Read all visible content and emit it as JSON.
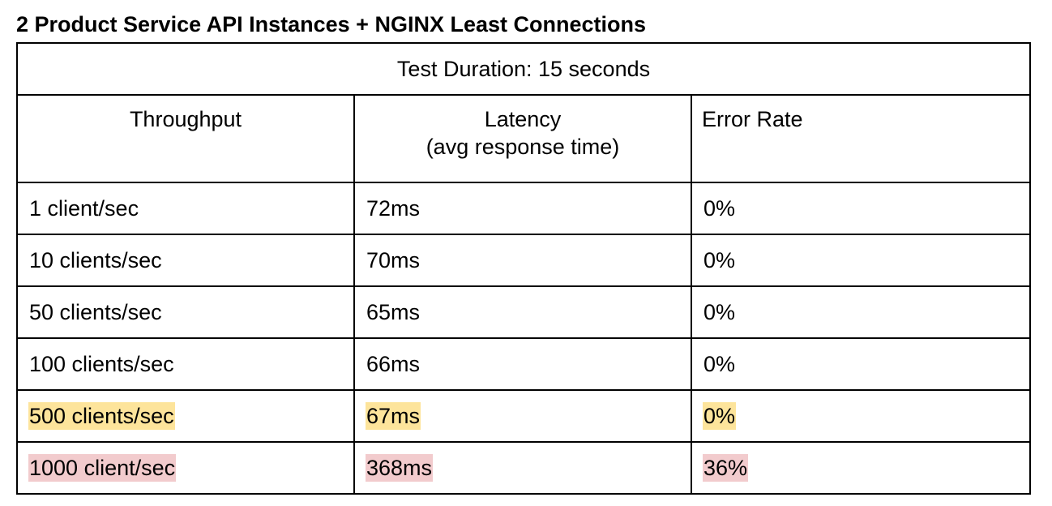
{
  "title": "2 Product Service API Instances + NGINX Least Connections",
  "table": {
    "duration": "Test Duration: 15 seconds",
    "headers": {
      "throughput": "Throughput",
      "latency_line1": "Latency",
      "latency_line2": "(avg response time)",
      "error_rate": "Error Rate"
    },
    "rows": [
      {
        "throughput": "1 client/sec",
        "latency": "72ms",
        "error_rate": "0%",
        "highlight": "none"
      },
      {
        "throughput": "10 clients/sec",
        "latency": "70ms",
        "error_rate": "0%",
        "highlight": "none"
      },
      {
        "throughput": "50 clients/sec",
        "latency": "65ms",
        "error_rate": "0%",
        "highlight": "none"
      },
      {
        "throughput": "100 clients/sec",
        "latency": "66ms",
        "error_rate": "0%",
        "highlight": "none"
      },
      {
        "throughput": "500 clients/sec",
        "latency": "67ms",
        "error_rate": "0%",
        "highlight": "yellow"
      },
      {
        "throughput": "1000 client/sec",
        "latency": "368ms",
        "error_rate": "36%",
        "highlight": "red"
      }
    ]
  },
  "colors": {
    "highlight_yellow": "#fde49b",
    "highlight_red": "#f2cbcd",
    "border": "#000000"
  }
}
